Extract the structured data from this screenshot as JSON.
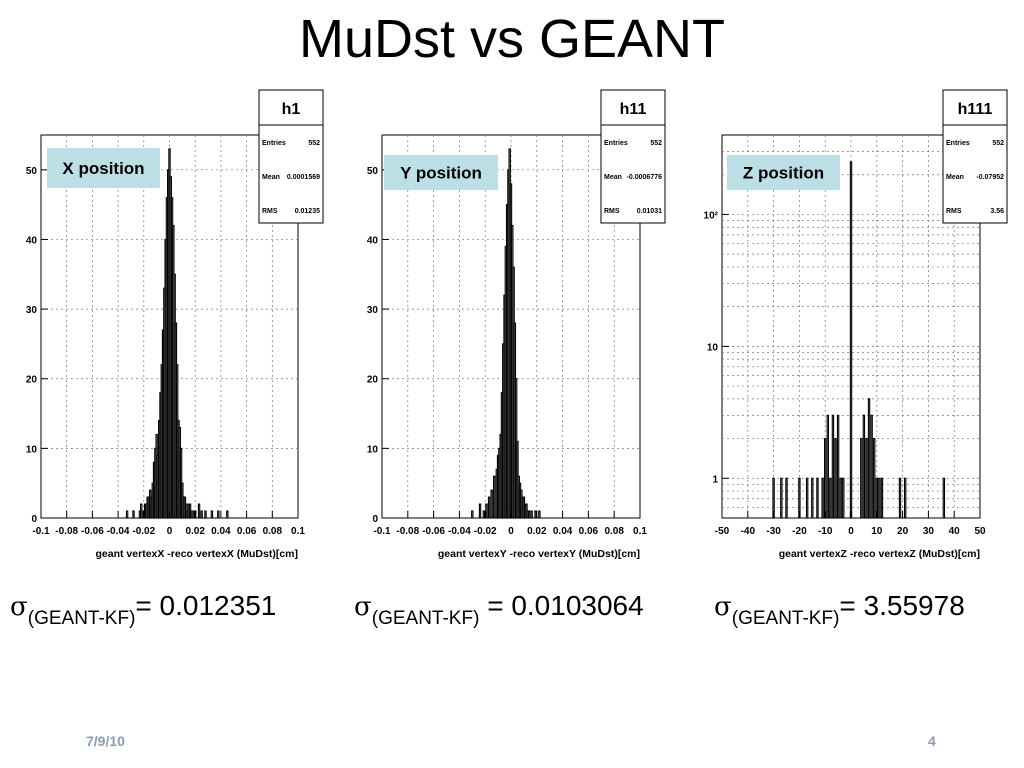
{
  "slide": {
    "title": "MuDst vs GEANT",
    "date": "7/9/10",
    "page": "4"
  },
  "sigmas": [
    {
      "symbol": "σ",
      "subscript": "(GEANT-KF)",
      "text": "= 0.012351"
    },
    {
      "symbol": "σ",
      "subscript": "(GEANT-KF)",
      "text": " = 0.0103064"
    },
    {
      "symbol": "σ",
      "subscript": "(GEANT-KF)",
      "text": "= 3.55978"
    }
  ],
  "chart_data": [
    {
      "type": "bar",
      "label": "X position",
      "stats": {
        "title": "h1",
        "entries_label": "Entries",
        "entries": "552",
        "mean_label": "Mean",
        "mean": "0.0001569",
        "rms_label": "RMS",
        "rms": "0.01235"
      },
      "xlabel": "geant vertexX -reco vertexX (MuDst)[cm]",
      "xlim": [
        -0.1,
        0.1
      ],
      "ylim": [
        0,
        55
      ],
      "yscale": "linear",
      "xticks": [
        -0.1,
        -0.08,
        -0.06,
        -0.04,
        -0.02,
        0,
        0.02,
        0.04,
        0.06,
        0.08,
        0.1
      ],
      "xtick_labels": [
        "-0.1",
        "-0.08",
        "-0.06",
        "-0.04",
        "-0.02",
        "0",
        "0.02",
        "0.04",
        "0.06",
        "0.08",
        "0.1"
      ],
      "yticks": [
        0,
        10,
        20,
        30,
        40,
        50
      ],
      "ytick_labels": [
        "0",
        "10",
        "20",
        "30",
        "40",
        "50"
      ],
      "grid": true,
      "bins": [
        [
          -0.023,
          1
        ],
        [
          -0.022,
          2
        ],
        [
          -0.02,
          1
        ],
        [
          -0.019,
          2
        ],
        [
          -0.018,
          2
        ],
        [
          -0.017,
          3
        ],
        [
          -0.016,
          3
        ],
        [
          -0.015,
          4
        ],
        [
          -0.014,
          3
        ],
        [
          -0.013,
          5
        ],
        [
          -0.012,
          8
        ],
        [
          -0.011,
          10
        ],
        [
          -0.01,
          12
        ],
        [
          -0.009,
          9
        ],
        [
          -0.008,
          14
        ],
        [
          -0.007,
          18
        ],
        [
          -0.006,
          22
        ],
        [
          -0.005,
          27
        ],
        [
          -0.004,
          33
        ],
        [
          -0.003,
          40
        ],
        [
          -0.002,
          46
        ],
        [
          -0.001,
          50
        ],
        [
          0.0,
          53
        ],
        [
          0.001,
          49
        ],
        [
          0.002,
          46
        ],
        [
          0.003,
          42
        ],
        [
          0.004,
          35
        ],
        [
          0.005,
          28
        ],
        [
          0.006,
          22
        ],
        [
          0.007,
          14
        ],
        [
          0.008,
          13
        ],
        [
          0.009,
          10
        ],
        [
          0.01,
          5
        ],
        [
          0.011,
          3
        ],
        [
          0.012,
          3
        ],
        [
          0.013,
          2
        ],
        [
          0.014,
          1
        ],
        [
          0.015,
          2
        ],
        [
          0.016,
          2
        ],
        [
          0.017,
          1
        ],
        [
          0.018,
          1
        ],
        [
          0.02,
          1
        ],
        [
          0.023,
          2
        ],
        [
          0.025,
          1
        ],
        [
          0.028,
          1
        ],
        [
          0.033,
          1
        ],
        [
          0.038,
          1
        ],
        [
          0.045,
          1
        ],
        [
          -0.028,
          1
        ],
        [
          -0.033,
          1
        ]
      ]
    },
    {
      "type": "bar",
      "label": "Y position",
      "stats": {
        "title": "h11",
        "entries_label": "Entries",
        "entries": "552",
        "mean_label": "Mean",
        "mean": "-0.0006776",
        "rms_label": "RMS",
        "rms": "0.01031"
      },
      "xlabel": "geant vertexY -reco vertexY (MuDst)[cm]",
      "xlim": [
        -0.1,
        0.1
      ],
      "ylim": [
        0,
        55
      ],
      "yscale": "linear",
      "xticks": [
        -0.1,
        -0.08,
        -0.06,
        -0.04,
        -0.02,
        0,
        0.02,
        0.04,
        0.06,
        0.08,
        0.1
      ],
      "xtick_labels": [
        "-0.1",
        "-0.08",
        "-0.06",
        "-0.04",
        "-0.02",
        "0",
        "0.02",
        "0.04",
        "0.06",
        "0.08",
        "0.1"
      ],
      "yticks": [
        0,
        10,
        20,
        30,
        40,
        50
      ],
      "ytick_labels": [
        "0",
        "10",
        "20",
        "30",
        "40",
        "50"
      ],
      "grid": true,
      "bins": [
        [
          -0.03,
          1
        ],
        [
          -0.024,
          2
        ],
        [
          -0.021,
          1
        ],
        [
          -0.019,
          2
        ],
        [
          -0.017,
          3
        ],
        [
          -0.015,
          4
        ],
        [
          -0.013,
          6
        ],
        [
          -0.011,
          7
        ],
        [
          -0.01,
          9
        ],
        [
          -0.009,
          10
        ],
        [
          -0.008,
          12
        ],
        [
          -0.007,
          18
        ],
        [
          -0.006,
          25
        ],
        [
          -0.005,
          32
        ],
        [
          -0.004,
          39
        ],
        [
          -0.003,
          45
        ],
        [
          -0.002,
          50
        ],
        [
          -0.001,
          53
        ],
        [
          0.0,
          48
        ],
        [
          0.001,
          42
        ],
        [
          0.002,
          36
        ],
        [
          0.003,
          28
        ],
        [
          0.004,
          20
        ],
        [
          0.005,
          11
        ],
        [
          0.006,
          6
        ],
        [
          0.007,
          5
        ],
        [
          0.008,
          4
        ],
        [
          0.009,
          3
        ],
        [
          0.01,
          3
        ],
        [
          0.011,
          2
        ],
        [
          0.012,
          2
        ],
        [
          0.013,
          1
        ],
        [
          0.014,
          1
        ],
        [
          0.016,
          1
        ],
        [
          0.019,
          1
        ],
        [
          0.022,
          1
        ]
      ]
    },
    {
      "type": "bar",
      "label": "Z position",
      "stats": {
        "title": "h111",
        "entries_label": "Entries",
        "entries": "552",
        "mean_label": "Mean",
        "mean": "-0.07952",
        "rms_label": "RMS",
        "rms": "3.56"
      },
      "xlabel": "geant vertexZ -reco vertexZ (MuDst)[cm]",
      "xlim": [
        -50,
        50
      ],
      "ylim": [
        0.5,
        400
      ],
      "yscale": "log",
      "xticks": [
        -50,
        -40,
        -30,
        -20,
        -10,
        0,
        10,
        20,
        30,
        40,
        50
      ],
      "xtick_labels": [
        "-50",
        "-40",
        "-30",
        "-20",
        "-10",
        "0",
        "10",
        "20",
        "30",
        "40",
        "50"
      ],
      "yticks": [
        1,
        10,
        100
      ],
      "ytick_labels": [
        "1",
        "10",
        "10²"
      ],
      "grid": true,
      "bins": [
        [
          -30,
          1
        ],
        [
          -27,
          1
        ],
        [
          -25,
          1
        ],
        [
          -20,
          1
        ],
        [
          -17,
          1
        ],
        [
          -15,
          1
        ],
        [
          -13,
          1
        ],
        [
          -11,
          1
        ],
        [
          -10,
          2
        ],
        [
          -9,
          3
        ],
        [
          -8,
          1
        ],
        [
          -7,
          3
        ],
        [
          -6,
          2
        ],
        [
          -5,
          3
        ],
        [
          -4,
          1
        ],
        [
          -3,
          1
        ],
        [
          0,
          250
        ],
        [
          4,
          2
        ],
        [
          5,
          3
        ],
        [
          6,
          2
        ],
        [
          7,
          4
        ],
        [
          8,
          3
        ],
        [
          9,
          2
        ],
        [
          10,
          1
        ],
        [
          11,
          1
        ],
        [
          12,
          1
        ],
        [
          19,
          1
        ],
        [
          21,
          1
        ],
        [
          36,
          1
        ]
      ]
    }
  ]
}
